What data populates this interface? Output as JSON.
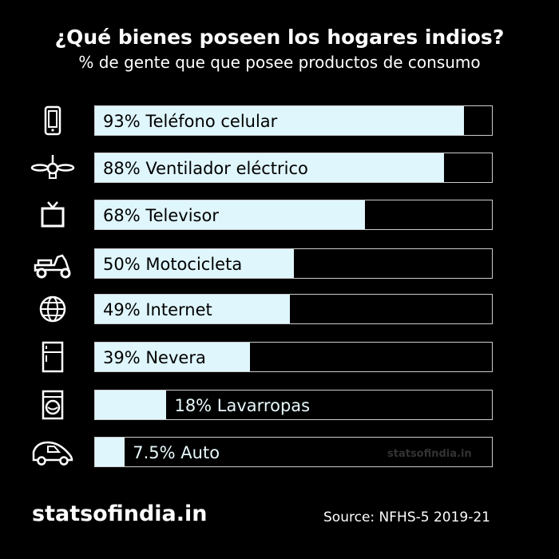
{
  "chart_data": {
    "type": "bar",
    "orientation": "horizontal",
    "title": "¿Qué bienes poseen los hogares indios?",
    "subtitle": "% de gente que que posee productos de consumo",
    "categories": [
      "Teléfono celular",
      "Ventilador eléctrico",
      "Televisor",
      "Motocicleta",
      "Internet",
      "Nevera",
      "Lavarropas",
      "Auto"
    ],
    "labels": [
      "93%",
      "88%",
      "68%",
      "50%",
      "49%",
      "39%",
      "18%",
      "7.5%"
    ],
    "values": [
      93,
      88,
      68,
      50,
      49,
      39,
      18,
      7.5
    ],
    "icons": [
      "mobile-phone-icon",
      "ceiling-fan-icon",
      "television-icon",
      "scooter-icon",
      "globe-icon",
      "fridge-icon",
      "washing-machine-icon",
      "car-icon"
    ],
    "xlim": [
      0,
      100
    ],
    "fill_color": "#dff6fc",
    "background": "#000000"
  },
  "footer": {
    "brand": "statsofindia.in",
    "source": "Source: NFHS-5 2019-21",
    "watermark": "statsofindia.in"
  }
}
